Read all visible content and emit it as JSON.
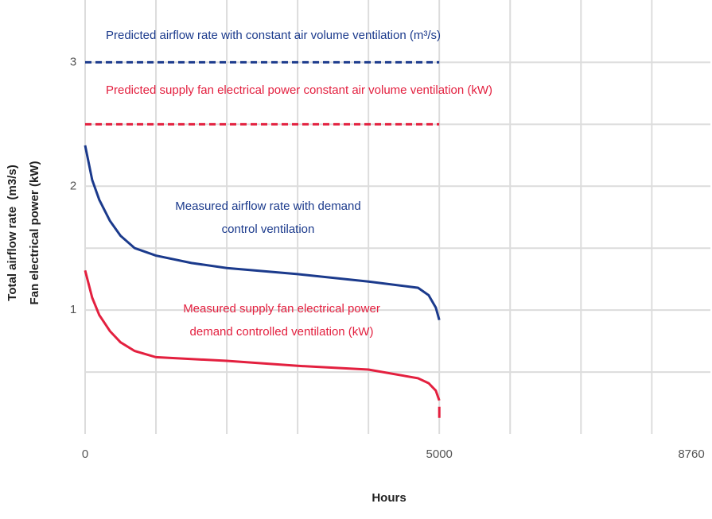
{
  "chart_data": {
    "type": "line",
    "xlabel": "Hours",
    "ylabel": [
      "Total airflow rate  (m3/s)",
      "Fan electrical power (kW)"
    ],
    "xlim": [
      0,
      8760
    ],
    "ylim": [
      0,
      3.5
    ],
    "xticks": [
      0,
      5000,
      8760
    ],
    "yticks": [
      1,
      2,
      3
    ],
    "xgrid": [
      0,
      1000,
      2000,
      3000,
      4000,
      5000,
      6000,
      7000,
      8000
    ],
    "ygrid": [
      0.5,
      1,
      1.5,
      2,
      2.5,
      3
    ],
    "series": [
      {
        "label": [
          "Predicted airflow rate with constant air volume ventilation (m³/s)"
        ],
        "color": "#1b3a8c",
        "dash": true,
        "x": [
          0,
          5000
        ],
        "values": [
          3,
          3
        ]
      },
      {
        "label": [
          "Predicted supply fan electrical power constant air volume ventilation (kW)"
        ],
        "color": "#e3203f",
        "dash": true,
        "x": [
          0,
          5000
        ],
        "values": [
          2.5,
          2.5
        ]
      },
      {
        "label": [
          "Measured airflow rate with demand",
          "control ventilation"
        ],
        "color": "#1b3a8c",
        "dash": false,
        "x": [
          0,
          100,
          200,
          350,
          500,
          700,
          1000,
          1500,
          2000,
          3000,
          4000,
          4700,
          4850,
          4950,
          5000
        ],
        "values": [
          2.33,
          2.05,
          1.89,
          1.72,
          1.6,
          1.5,
          1.44,
          1.38,
          1.34,
          1.29,
          1.23,
          1.18,
          1.12,
          1.02,
          0.92
        ]
      },
      {
        "label": [
          "Measured supply fan electrical power",
          "demand controlled ventilation (kW)"
        ],
        "color": "#e3203f",
        "dash": false,
        "x": [
          0,
          100,
          200,
          350,
          500,
          700,
          1000,
          2000,
          3000,
          4000,
          4700,
          4850,
          4950,
          5000,
          5000,
          5000,
          5000,
          5000,
          8760
        ],
        "values": [
          1.32,
          1.1,
          0.96,
          0.83,
          0.74,
          0.67,
          0.62,
          0.59,
          0.55,
          0.52,
          0.45,
          0.41,
          0.35,
          0.27,
          null,
          0.22,
          0.13,
          null,
          0
        ]
      }
    ]
  }
}
